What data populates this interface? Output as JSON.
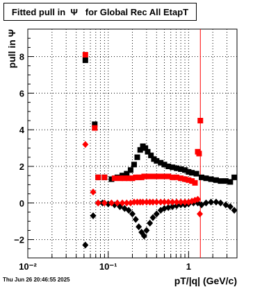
{
  "title": "Fitted pull in  Ψ   for Global Rec All EtapT",
  "timestamp": "Thu Jun 26 20:46:55 2025",
  "chart_data": {
    "type": "scatter",
    "title": "Fitted pull in  Ψ   for Global Rec All EtapT",
    "xlabel": "pT/|q| (GeV/c)",
    "ylabel": "pull in  Ψ",
    "xscale": "log",
    "xlim": [
      0.01,
      4.0
    ],
    "ylim": [
      -3.0,
      9.5
    ],
    "grid": true,
    "x_tick_labels": [
      "10⁻²",
      "10⁻¹",
      "1"
    ],
    "y_tick_labels": [
      "−2",
      "0",
      "2",
      "4",
      "6",
      "8"
    ],
    "vertical_line": {
      "x": 1.4,
      "color": "#ff0000"
    },
    "series": [
      {
        "color": "#000000",
        "marker": "square",
        "points": [
          [
            0.052,
            7.8
          ],
          [
            0.068,
            4.3
          ],
          [
            0.075,
            1.4
          ],
          [
            0.09,
            1.4
          ],
          [
            0.11,
            1.3
          ],
          [
            0.13,
            1.4
          ],
          [
            0.15,
            1.5
          ],
          [
            0.17,
            1.6
          ],
          [
            0.19,
            1.8
          ],
          [
            0.21,
            2.1
          ],
          [
            0.23,
            2.5
          ],
          [
            0.25,
            2.9
          ],
          [
            0.27,
            3.1
          ],
          [
            0.29,
            3.0
          ],
          [
            0.31,
            2.8
          ],
          [
            0.34,
            2.6
          ],
          [
            0.37,
            2.4
          ],
          [
            0.4,
            2.3
          ],
          [
            0.45,
            2.2
          ],
          [
            0.5,
            2.1
          ],
          [
            0.56,
            2.0
          ],
          [
            0.63,
            1.95
          ],
          [
            0.71,
            1.9
          ],
          [
            0.8,
            1.85
          ],
          [
            0.9,
            1.8
          ],
          [
            1.0,
            1.7
          ],
          [
            1.1,
            1.65
          ],
          [
            1.25,
            1.6
          ],
          [
            1.45,
            1.4
          ],
          [
            1.65,
            1.35
          ],
          [
            1.9,
            1.3
          ],
          [
            2.2,
            1.25
          ],
          [
            2.5,
            1.2
          ],
          [
            2.9,
            1.2
          ],
          [
            3.3,
            1.15
          ],
          [
            3.7,
            1.4
          ]
        ]
      },
      {
        "color": "#000000",
        "marker": "diamond",
        "points": [
          [
            0.052,
            -2.3
          ],
          [
            0.065,
            -0.7
          ],
          [
            0.075,
            0.0
          ],
          [
            0.085,
            0.0
          ],
          [
            0.1,
            -0.05
          ],
          [
            0.12,
            -0.1
          ],
          [
            0.14,
            -0.2
          ],
          [
            0.16,
            -0.3
          ],
          [
            0.18,
            -0.4
          ],
          [
            0.2,
            -0.6
          ],
          [
            0.22,
            -0.9
          ],
          [
            0.24,
            -1.3
          ],
          [
            0.26,
            -1.6
          ],
          [
            0.28,
            -1.8
          ],
          [
            0.3,
            -1.5
          ],
          [
            0.33,
            -1.1
          ],
          [
            0.36,
            -0.8
          ],
          [
            0.4,
            -0.6
          ],
          [
            0.45,
            -0.4
          ],
          [
            0.5,
            -0.3
          ],
          [
            0.56,
            -0.25
          ],
          [
            0.63,
            -0.2
          ],
          [
            0.71,
            -0.15
          ],
          [
            0.8,
            -0.1
          ],
          [
            0.9,
            -0.1
          ],
          [
            1.0,
            -0.05
          ],
          [
            1.15,
            0.0
          ],
          [
            1.3,
            0.0
          ],
          [
            1.45,
            -0.1
          ],
          [
            1.65,
            0.0
          ],
          [
            1.9,
            0.05
          ],
          [
            2.2,
            0.05
          ],
          [
            2.5,
            0.0
          ],
          [
            2.9,
            -0.1
          ],
          [
            3.3,
            -0.2
          ],
          [
            3.7,
            -0.4
          ]
        ]
      },
      {
        "color": "#ff0000",
        "marker": "square",
        "points": [
          [
            0.052,
            8.1
          ],
          [
            0.068,
            4.1
          ],
          [
            0.075,
            1.4
          ],
          [
            0.09,
            1.4
          ],
          [
            0.12,
            1.35
          ],
          [
            0.14,
            1.35
          ],
          [
            0.16,
            1.35
          ],
          [
            0.18,
            1.35
          ],
          [
            0.2,
            1.35
          ],
          [
            0.22,
            1.4
          ],
          [
            0.24,
            1.4
          ],
          [
            0.26,
            1.4
          ],
          [
            0.28,
            1.45
          ],
          [
            0.3,
            1.45
          ],
          [
            0.33,
            1.45
          ],
          [
            0.36,
            1.45
          ],
          [
            0.4,
            1.45
          ],
          [
            0.45,
            1.45
          ],
          [
            0.5,
            1.45
          ],
          [
            0.56,
            1.45
          ],
          [
            0.63,
            1.4
          ],
          [
            0.71,
            1.4
          ],
          [
            0.8,
            1.35
          ],
          [
            0.9,
            1.3
          ],
          [
            1.0,
            1.25
          ],
          [
            1.1,
            1.2
          ],
          [
            1.2,
            1.1
          ],
          [
            1.3,
            2.8
          ],
          [
            1.35,
            2.7
          ],
          [
            1.4,
            4.5
          ]
        ]
      },
      {
        "color": "#ff0000",
        "marker": "diamond",
        "points": [
          [
            0.052,
            3.2
          ],
          [
            0.065,
            0.6
          ],
          [
            0.075,
            0.0
          ],
          [
            0.09,
            0.0
          ],
          [
            0.11,
            0.0
          ],
          [
            0.13,
            0.0
          ],
          [
            0.15,
            0.0
          ],
          [
            0.17,
            0.0
          ],
          [
            0.19,
            0.0
          ],
          [
            0.21,
            0.05
          ],
          [
            0.23,
            0.05
          ],
          [
            0.25,
            0.05
          ],
          [
            0.27,
            0.05
          ],
          [
            0.3,
            0.05
          ],
          [
            0.33,
            0.05
          ],
          [
            0.36,
            0.05
          ],
          [
            0.4,
            0.05
          ],
          [
            0.45,
            0.05
          ],
          [
            0.5,
            0.05
          ],
          [
            0.56,
            0.05
          ],
          [
            0.63,
            0.05
          ],
          [
            0.71,
            0.05
          ],
          [
            0.8,
            0.05
          ],
          [
            0.9,
            0.05
          ],
          [
            1.0,
            0.05
          ],
          [
            1.1,
            0.1
          ],
          [
            1.2,
            0.15
          ],
          [
            1.3,
            0.2
          ],
          [
            1.38,
            -0.6
          ]
        ]
      }
    ]
  }
}
